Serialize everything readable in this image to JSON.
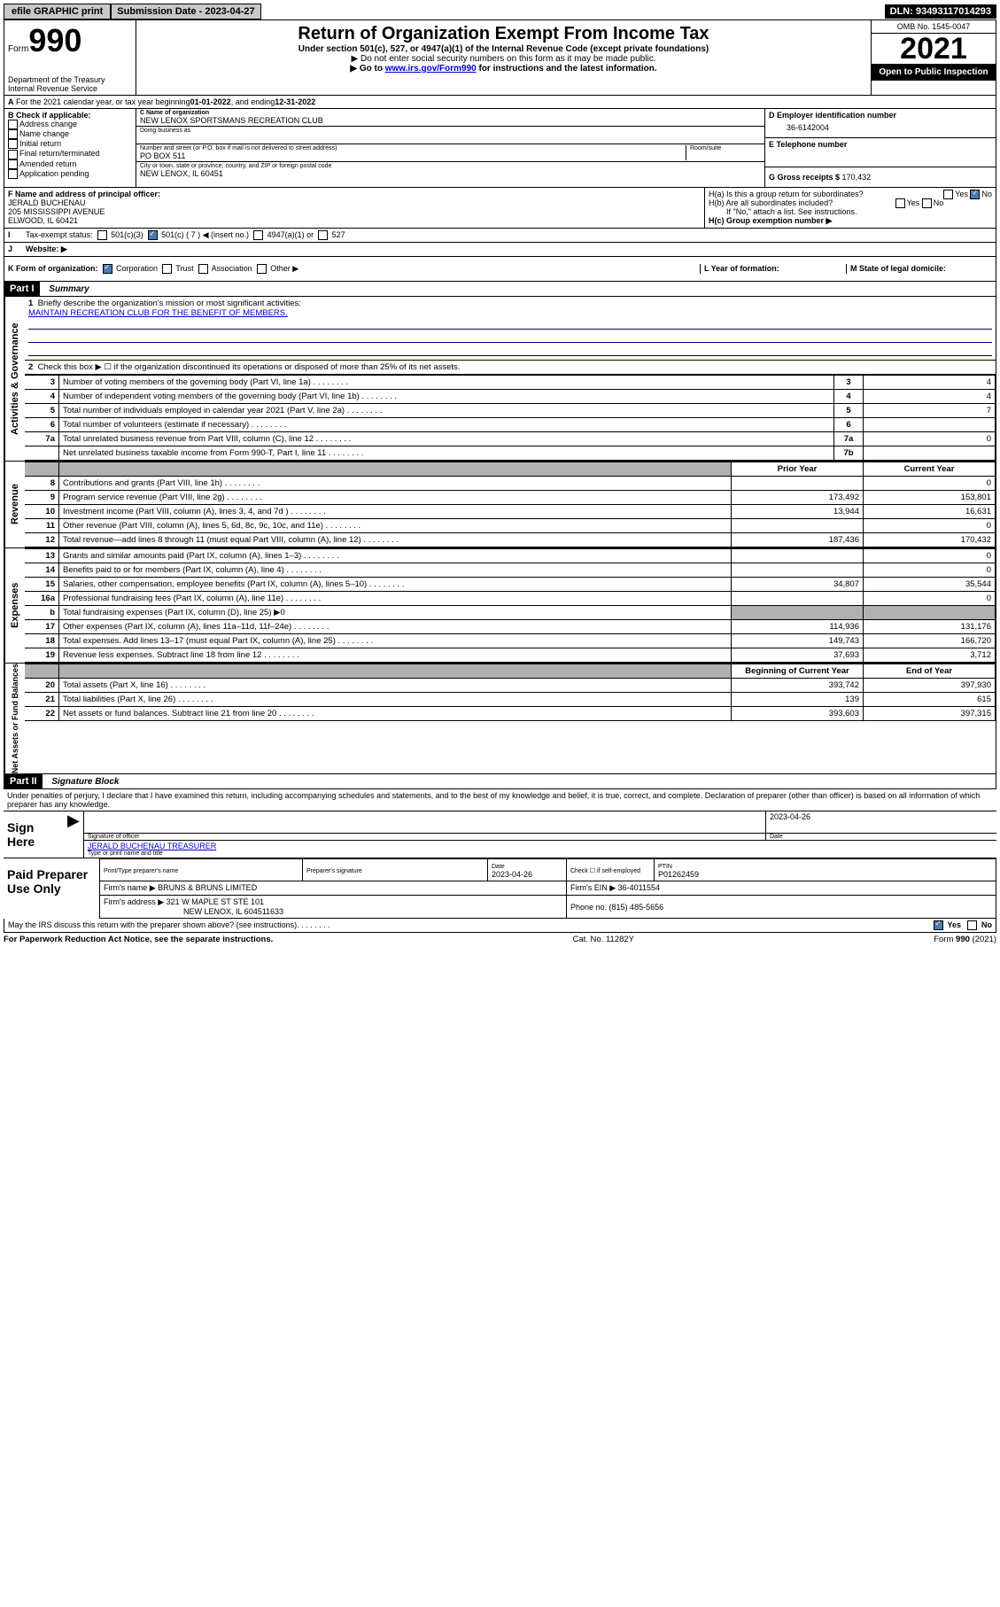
{
  "topbar": {
    "efile": "efile GRAPHIC print",
    "sub_label": "Submission Date - ",
    "sub_date": "2023-04-27",
    "dln_label": "DLN: ",
    "dln": "93493117014293"
  },
  "header": {
    "form_word": "Form",
    "form_num": "990",
    "title": "Return of Organization Exempt From Income Tax",
    "sub1": "Under section 501(c), 527, or 4947(a)(1) of the Internal Revenue Code (except private foundations)",
    "sub2": "▶ Do not enter social security numbers on this form as it may be made public.",
    "sub3_pre": "▶ Go to ",
    "sub3_link": "www.irs.gov/Form990",
    "sub3_post": " for instructions and the latest information.",
    "dept": "Department of the Treasury\nInternal Revenue Service",
    "omb": "OMB No. 1545-0047",
    "year": "2021",
    "open": "Open to Public Inspection"
  },
  "line_A": {
    "text_pre": "For the 2021 calendar year, or tax year beginning ",
    "begin": "01-01-2022",
    "mid": " , and ending ",
    "end": "12-31-2022"
  },
  "col_B": {
    "label": "B Check if applicable:",
    "items": [
      "Address change",
      "Name change",
      "Initial return",
      "Final return/terminated",
      "Amended return",
      "Application pending"
    ]
  },
  "col_C": {
    "name_lbl": "C Name of organization",
    "name": "NEW LENOX SPORTSMANS RECREATION CLUB",
    "dba_lbl": "Doing business as",
    "dba": "",
    "addr_lbl": "Number and street (or P.O. box if mail is not delivered to street address)",
    "room_lbl": "Room/suite",
    "addr": "PO BOX 511",
    "city_lbl": "City or town, state or province, country, and ZIP or foreign postal code",
    "city": "NEW LENOX, IL  60451"
  },
  "col_D": {
    "lbl": "D Employer identification number",
    "val": "36-6142004"
  },
  "col_E": {
    "lbl": "E Telephone number",
    "val": ""
  },
  "col_G": {
    "lbl": "G Gross receipts $ ",
    "val": "170,432"
  },
  "row_F": {
    "lbl": "F Name and address of principal officer:",
    "name": "JERALD BUCHENAU",
    "addr1": "205 MISSISSIPPI AVENUE",
    "addr2": "ELWOOD, IL  60421"
  },
  "row_H": {
    "a": "H(a)  Is this a group return for subordinates?",
    "a_no": "No",
    "b": "H(b)  Are all subordinates included?",
    "b_note": "If \"No,\" attach a list. See instructions.",
    "c": "H(c)  Group exemption number ▶"
  },
  "row_I": {
    "lbl": "Tax-exempt status:",
    "c3": "501(c)(3)",
    "c_open": "501(c) ( 7 ) ◀ (insert no.)",
    "a1": "4947(a)(1) or",
    "five27": "527"
  },
  "row_J": {
    "lbl": "Website: ▶",
    "val": ""
  },
  "row_K": {
    "lbl": "K Form of organization:",
    "opts": [
      "Corporation",
      "Trust",
      "Association",
      "Other ▶"
    ]
  },
  "row_L": {
    "lbl": "L Year of formation:",
    "val": ""
  },
  "row_M": {
    "lbl": "M State of legal domicile:",
    "val": ""
  },
  "part1": {
    "header": "Part I",
    "title": "Summary",
    "q1": "Briefly describe the organization's mission or most significant activities:",
    "q1v": "MAINTAIN RECREATION CLUB FOR THE BENEFIT OF MEMBERS.",
    "q2": "Check this box ▶ ☐  if the organization discontinued its operations or disposed of more than 25% of its net assets.",
    "rows_top": [
      {
        "n": "3",
        "t": "Number of voting members of the governing body (Part VI, line 1a)",
        "k": "3",
        "v": "4"
      },
      {
        "n": "4",
        "t": "Number of independent voting members of the governing body (Part VI, line 1b)",
        "k": "4",
        "v": "4"
      },
      {
        "n": "5",
        "t": "Total number of individuals employed in calendar year 2021 (Part V, line 2a)",
        "k": "5",
        "v": "7"
      },
      {
        "n": "6",
        "t": "Total number of volunteers (estimate if necessary)",
        "k": "6",
        "v": ""
      },
      {
        "n": "7a",
        "t": "Total unrelated business revenue from Part VIII, column (C), line 12",
        "k": "7a",
        "v": "0"
      },
      {
        "n": "",
        "t": "Net unrelated business taxable income from Form 990-T, Part I, line 11",
        "k": "7b",
        "v": ""
      }
    ],
    "col_headers": {
      "prior": "Prior Year",
      "current": "Current Year"
    },
    "revenue": [
      {
        "n": "8",
        "t": "Contributions and grants (Part VIII, line 1h)",
        "p": "",
        "c": "0"
      },
      {
        "n": "9",
        "t": "Program service revenue (Part VIII, line 2g)",
        "p": "173,492",
        "c": "153,801"
      },
      {
        "n": "10",
        "t": "Investment income (Part VIII, column (A), lines 3, 4, and 7d )",
        "p": "13,944",
        "c": "16,631"
      },
      {
        "n": "11",
        "t": "Other revenue (Part VIII, column (A), lines 5, 6d, 8c, 9c, 10c, and 11e)",
        "p": "",
        "c": "0"
      },
      {
        "n": "12",
        "t": "Total revenue—add lines 8 through 11 (must equal Part VIII, column (A), line 12)",
        "p": "187,436",
        "c": "170,432"
      }
    ],
    "expenses": [
      {
        "n": "13",
        "t": "Grants and similar amounts paid (Part IX, column (A), lines 1–3)",
        "p": "",
        "c": "0"
      },
      {
        "n": "14",
        "t": "Benefits paid to or for members (Part IX, column (A), line 4)",
        "p": "",
        "c": "0"
      },
      {
        "n": "15",
        "t": "Salaries, other compensation, employee benefits (Part IX, column (A), lines 5–10)",
        "p": "34,807",
        "c": "35,544"
      },
      {
        "n": "16a",
        "t": "Professional fundraising fees (Part IX, column (A), line 11e)",
        "p": "",
        "c": "0"
      },
      {
        "n": "b",
        "t": "Total fundraising expenses (Part IX, column (D), line 25) ▶0",
        "p": "",
        "c": "",
        "shaded": true
      },
      {
        "n": "17",
        "t": "Other expenses (Part IX, column (A), lines 11a–11d, 11f–24e)",
        "p": "114,936",
        "c": "131,176"
      },
      {
        "n": "18",
        "t": "Total expenses. Add lines 13–17 (must equal Part IX, column (A), line 25)",
        "p": "149,743",
        "c": "166,720"
      },
      {
        "n": "19",
        "t": "Revenue less expenses. Subtract line 18 from line 12",
        "p": "37,693",
        "c": "3,712"
      }
    ],
    "bal_headers": {
      "b": "Beginning of Current Year",
      "e": "End of Year"
    },
    "balances": [
      {
        "n": "20",
        "t": "Total assets (Part X, line 16)",
        "p": "393,742",
        "c": "397,930"
      },
      {
        "n": "21",
        "t": "Total liabilities (Part X, line 26)",
        "p": "139",
        "c": "615"
      },
      {
        "n": "22",
        "t": "Net assets or fund balances. Subtract line 21 from line 20",
        "p": "393,603",
        "c": "397,315"
      }
    ]
  },
  "part2": {
    "header": "Part II",
    "title": "Signature Block",
    "decl": "Under penalties of perjury, I declare that I have examined this return, including accompanying schedules and statements, and to the best of my knowledge and belief, it is true, correct, and complete. Declaration of preparer (other than officer) is based on all information of which preparer has any knowledge."
  },
  "sign": {
    "label": "Sign Here",
    "sig_lbl": "Signature of officer",
    "date_lbl": "Date",
    "date": "2023-04-26",
    "name": "JERALD BUCHENAU  TREASURER",
    "name_lbl": "Type or print name and title"
  },
  "paid": {
    "label": "Paid Preparer Use Only",
    "h1": "Print/Type preparer's name",
    "h2": "Preparer's signature",
    "h3": "Date",
    "h3v": "2023-04-26",
    "h4": "Check ☐ if self-employed",
    "h5": "PTIN",
    "h5v": "P01262459",
    "firm_lbl": "Firm's name    ▶",
    "firm": "BRUNS & BRUNS LIMITED",
    "ein_lbl": "Firm's EIN ▶ ",
    "ein": "36-4011554",
    "addr_lbl": "Firm's address ▶",
    "addr1": "321 W MAPLE ST STE 101",
    "addr2": "NEW LENOX, IL  604511633",
    "phone_lbl": "Phone no. ",
    "phone": "(815) 485-5656"
  },
  "footer": {
    "discuss": "May the IRS discuss this return with the preparer shown above? (see instructions)",
    "yes": "Yes",
    "no": "No",
    "paperwork": "For Paperwork Reduction Act Notice, see the separate instructions.",
    "cat": "Cat. No. 11282Y",
    "form": "Form 990 (2021)"
  },
  "side_labels": {
    "ag": "Activities & Governance",
    "rev": "Revenue",
    "exp": "Expenses",
    "bal": "Net Assets or Fund Balances"
  }
}
